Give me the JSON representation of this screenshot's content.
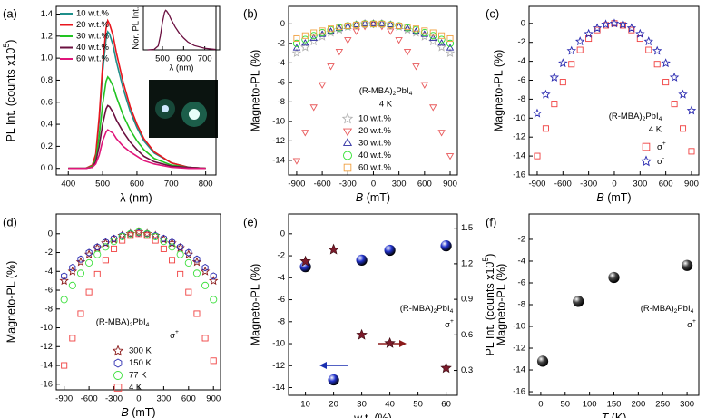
{
  "chart_data": [
    {
      "type": "line",
      "panel_label": "(a)",
      "x": [
        400,
        450,
        470,
        480,
        490,
        500,
        510,
        515,
        520,
        530,
        540,
        560,
        580,
        600,
        620,
        650,
        700,
        750,
        800
      ],
      "xlim": [
        365,
        830
      ],
      "xticks": [
        400,
        500,
        600,
        700,
        800
      ],
      "ylim": [
        -0.06,
        1.47
      ],
      "yticks": [
        {
          "value": 0,
          "label": "0.0"
        },
        0.2,
        0.4,
        0.6,
        0.8,
        {
          "value": 1,
          "label": "1.0"
        },
        1.2,
        1.4
      ],
      "xlabel": "λ (nm)",
      "ylabel": {
        "parts": [
          "PL Int. (counts x10",
          "5",
          ")"
        ],
        "shift": [
          "base",
          "sup",
          "base"
        ]
      },
      "series": [
        {
          "name": "10 w.t.%",
          "color": "#1f8f8a",
          "values": [
            0,
            0,
            0.02,
            0.12,
            0.43,
            0.87,
            1.18,
            1.24,
            1.22,
            1.12,
            0.97,
            0.72,
            0.52,
            0.37,
            0.25,
            0.14,
            0.05,
            0.01,
            0
          ]
        },
        {
          "name": "20 w.t.%",
          "color": "#e8161e",
          "values": [
            0,
            0,
            0.03,
            0.13,
            0.47,
            0.94,
            1.27,
            1.34,
            1.31,
            1.21,
            1.05,
            0.78,
            0.56,
            0.4,
            0.27,
            0.15,
            0.05,
            0.01,
            0
          ]
        },
        {
          "name": "30 w.t.%",
          "color": "#22c422",
          "values": [
            0,
            0,
            0.02,
            0.08,
            0.29,
            0.58,
            0.79,
            0.83,
            0.81,
            0.75,
            0.65,
            0.48,
            0.35,
            0.25,
            0.17,
            0.09,
            0.03,
            0.01,
            0
          ]
        },
        {
          "name": "40 w.t.%",
          "color": "#6b1040",
          "values": [
            0,
            0,
            0.01,
            0.06,
            0.2,
            0.4,
            0.54,
            0.57,
            0.56,
            0.51,
            0.44,
            0.33,
            0.24,
            0.17,
            0.11,
            0.06,
            0.02,
            0.01,
            0
          ]
        },
        {
          "name": "60 w.t.%",
          "color": "#e0157a",
          "values": [
            0,
            0,
            0.01,
            0.04,
            0.12,
            0.25,
            0.33,
            0.35,
            0.34,
            0.32,
            0.27,
            0.2,
            0.15,
            0.11,
            0.07,
            0.04,
            0.01,
            0,
            0
          ]
        }
      ],
      "inset": {
        "type": "line",
        "x": [
          430,
          460,
          480,
          490,
          500,
          510,
          515,
          520,
          530,
          540,
          560,
          580,
          600,
          620,
          650,
          700,
          750
        ],
        "values": [
          0,
          0.01,
          0.1,
          0.35,
          0.7,
          0.95,
          1,
          0.98,
          0.9,
          0.78,
          0.58,
          0.42,
          0.3,
          0.2,
          0.11,
          0.04,
          0.01
        ],
        "color": "#6b1040",
        "xlim": [
          410,
          770
        ],
        "ylim": [
          0,
          1.1
        ],
        "xticks": [
          500,
          600,
          700
        ],
        "xlabel": "λ (nm)",
        "ylabel": "Nor. PL Int."
      }
    },
    {
      "type": "scatter",
      "panel_label": "(b)",
      "x": [
        -900,
        -800,
        -700,
        -600,
        -500,
        -400,
        -300,
        -200,
        -100,
        0,
        100,
        200,
        300,
        400,
        500,
        600,
        700,
        800,
        900
      ],
      "xlim": [
        -995,
        985
      ],
      "xticks": [
        -900,
        -600,
        -300,
        0,
        300,
        600,
        900
      ],
      "ylim": [
        -15.5,
        1.8
      ],
      "yticks": [
        0,
        -2,
        -4,
        -6,
        -8,
        -10,
        -12,
        -14
      ],
      "xlabel": {
        "parts": [
          "B",
          " (mT)"
        ],
        "shift": [
          "italic",
          "base"
        ]
      },
      "ylabel": "Magneto-PL (%)",
      "annotation": {
        "parts": [
          "(R-MBA)",
          "2",
          "PbI",
          "4"
        ],
        "shift": [
          "base",
          "sub",
          "base",
          "sub"
        ]
      },
      "annotation2": "4 K",
      "series": [
        {
          "name": "10 w.t.%",
          "color": "#b0b0b0",
          "marker": "star",
          "values": [
            -3,
            -2.4,
            -1.8,
            -1.3,
            -0.9,
            -0.6,
            -0.3,
            -0.1,
            0,
            0,
            0,
            -0.1,
            -0.3,
            -0.6,
            -0.9,
            -1.3,
            -1.8,
            -2.4,
            -3
          ]
        },
        {
          "name": "20 w.t.%",
          "color": "#e8585a",
          "marker": "down-triangle",
          "values": [
            -14,
            -11.1,
            -8.5,
            -6.2,
            -4.3,
            -2.8,
            -1.6,
            -0.7,
            -0.2,
            0,
            -0.2,
            -0.7,
            -1.6,
            -2.8,
            -4.3,
            -6.2,
            -8.5,
            -11.1,
            -13.5
          ]
        },
        {
          "name": "30 w.t.%",
          "color": "#2a2aa0",
          "marker": "up-triangle",
          "values": [
            -2.5,
            -2,
            -1.5,
            -1.1,
            -0.8,
            -0.5,
            -0.3,
            -0.1,
            0,
            0,
            0,
            -0.1,
            -0.3,
            -0.5,
            -0.8,
            -1.1,
            -1.5,
            -2,
            -2.5
          ]
        },
        {
          "name": "40 w.t.%",
          "color": "#30e030",
          "marker": "circle",
          "values": [
            -2,
            -1.6,
            -1.2,
            -0.9,
            -0.6,
            -0.4,
            -0.2,
            -0.1,
            0,
            0,
            0,
            -0.1,
            -0.2,
            -0.4,
            -0.6,
            -0.9,
            -1.2,
            -1.6,
            -2
          ]
        },
        {
          "name": "60 w.t.%",
          "color": "#f0a040",
          "marker": "square",
          "values": [
            -1.5,
            -1.2,
            -0.9,
            -0.7,
            -0.5,
            -0.3,
            -0.2,
            -0.1,
            0,
            0,
            0,
            -0.1,
            -0.2,
            -0.3,
            -0.5,
            -0.7,
            -0.9,
            -1.2,
            -1.5
          ]
        }
      ]
    },
    {
      "type": "scatter",
      "panel_label": "(c)",
      "x": [
        -900,
        -800,
        -700,
        -600,
        -500,
        -400,
        -300,
        -200,
        -100,
        0,
        100,
        200,
        300,
        400,
        500,
        600,
        700,
        800,
        900
      ],
      "xlim": [
        -995,
        985
      ],
      "xticks": [
        -900,
        -600,
        -300,
        0,
        300,
        600,
        900
      ],
      "ylim": [
        -16,
        1.8
      ],
      "yticks": [
        0,
        -2,
        -4,
        -6,
        -8,
        -10,
        -12,
        -14,
        -16
      ],
      "xlabel": {
        "parts": [
          "B",
          " (mT)"
        ],
        "shift": [
          "italic",
          "base"
        ]
      },
      "ylabel": "Magneto-PL (%)",
      "annotation": {
        "parts": [
          "(R-MBA)",
          "2",
          "PbI",
          "4"
        ],
        "shift": [
          "base",
          "sub",
          "base",
          "sub"
        ]
      },
      "annotation2": "4 K",
      "series": [
        {
          "name": {
            "parts": [
              "σ",
              "+"
            ],
            "shift": [
              "base",
              "sup"
            ]
          },
          "color": "#f04040",
          "marker": "square",
          "values": [
            -14,
            -11.1,
            -8.5,
            -6.2,
            -4.3,
            -2.8,
            -1.6,
            -0.7,
            -0.2,
            0,
            -0.2,
            -0.7,
            -1.6,
            -2.8,
            -4.3,
            -6.2,
            -8.5,
            -11.1,
            -13.5
          ]
        },
        {
          "name": {
            "parts": [
              "σ",
              "-"
            ],
            "shift": [
              "base",
              "sup"
            ]
          },
          "color": "#2a2ab0",
          "marker": "star",
          "values": [
            -9.5,
            -7.5,
            -5.7,
            -4.2,
            -2.9,
            -1.9,
            -1.1,
            -0.5,
            -0.1,
            0,
            -0.1,
            -0.5,
            -1.1,
            -1.9,
            -2.9,
            -4.2,
            -5.7,
            -7.5,
            -9.2
          ]
        }
      ]
    },
    {
      "type": "scatter",
      "panel_label": "(d)",
      "x": [
        -900,
        -800,
        -700,
        -600,
        -500,
        -400,
        -300,
        -200,
        -100,
        0,
        100,
        200,
        300,
        400,
        500,
        600,
        700,
        800,
        900
      ],
      "xlim": [
        -995,
        985
      ],
      "xticks": [
        -900,
        -600,
        -300,
        0,
        300,
        600,
        900
      ],
      "ylim": [
        -16.6,
        2.1
      ],
      "yticks": [
        0,
        -2,
        -4,
        -6,
        -8,
        -10,
        -12,
        -14,
        -16
      ],
      "xlabel": {
        "parts": [
          "B",
          " (mT)"
        ],
        "shift": [
          "italic",
          "base"
        ]
      },
      "ylabel": "Magneto-PL (%)",
      "annotation": {
        "parts": [
          "(R-MBA)",
          "2",
          "PbI",
          "4"
        ],
        "shift": [
          "base",
          "sub",
          "base",
          "sub"
        ]
      },
      "annotation2": {
        "parts": [
          "σ",
          "+"
        ],
        "shift": [
          "base",
          "sup"
        ]
      },
      "series": [
        {
          "name": "300 K",
          "color": "#8b1a1a",
          "marker": "star",
          "values": [
            -5,
            -4,
            -3,
            -2.2,
            -1.5,
            -1,
            -0.6,
            -0.2,
            0,
            0.2,
            0,
            -0.2,
            -0.6,
            -1,
            -1.5,
            -2.2,
            -3,
            -4,
            -5
          ]
        },
        {
          "name": "150 K",
          "color": "#2a2ab0",
          "marker": "hexagon",
          "values": [
            -4.5,
            -3.6,
            -2.7,
            -2,
            -1.4,
            -0.9,
            -0.5,
            -0.2,
            0,
            0.1,
            0,
            -0.2,
            -0.5,
            -0.9,
            -1.4,
            -2,
            -2.7,
            -3.6,
            -4.5
          ]
        },
        {
          "name": "77 K",
          "color": "#3ee03e",
          "marker": "circle",
          "values": [
            -7,
            -5.5,
            -4.2,
            -3.1,
            -2.2,
            -1.4,
            -0.8,
            -0.3,
            0,
            0.2,
            0,
            -0.3,
            -0.8,
            -1.4,
            -2.2,
            -3.1,
            -4.2,
            -5.5,
            -7
          ]
        },
        {
          "name": "4 K",
          "color": "#f04040",
          "marker": "square",
          "values": [
            -14,
            -11.1,
            -8.5,
            -6.2,
            -4.3,
            -2.8,
            -1.6,
            -0.7,
            -0.2,
            0,
            -0.2,
            -0.7,
            -1.6,
            -2.8,
            -4.3,
            -6.2,
            -8.5,
            -11.1,
            -13.5
          ]
        }
      ]
    },
    {
      "type": "scatter",
      "panel_label": "(e)",
      "x": [
        10,
        20,
        30,
        40,
        60
      ],
      "xlim": [
        4,
        64
      ],
      "xticks": [
        10,
        20,
        30,
        40,
        50,
        60
      ],
      "ylim": [
        -14.7,
        1.8
      ],
      "yticks": [
        0,
        -2,
        -4,
        -6,
        -8,
        -10,
        -12,
        -14
      ],
      "y2lim": [
        0.09,
        1.62
      ],
      "y2ticks": [
        0.3,
        0.6,
        0.9,
        1.2,
        1.5
      ],
      "xlabel": "w.t. (%)",
      "ylabel": "Magneto-PL (%)",
      "y2label": {
        "parts": [
          "PL Int. (counts x10",
          "5",
          ")"
        ],
        "shift": [
          "base",
          "sup",
          "base"
        ]
      },
      "annotation": {
        "parts": [
          "(R-MBA)",
          "2",
          "PbI",
          "4"
        ],
        "shift": [
          "base",
          "sub",
          "base",
          "sub"
        ]
      },
      "annotation2": {
        "parts": [
          "σ",
          "+"
        ],
        "shift": [
          "base",
          "sup"
        ]
      },
      "series": [
        {
          "color": "#2233cc",
          "marker": "sphere",
          "values": [
            -3,
            -13.3,
            -2.4,
            -1.5,
            -1.1
          ]
        },
        {
          "color": "#7a1a2a",
          "marker": "filled-star",
          "axis": "y2",
          "values": [
            1.22,
            1.32,
            0.6,
            0.53,
            0.32
          ]
        }
      ]
    },
    {
      "type": "scatter",
      "panel_label": "(f)",
      "x": [
        4,
        77,
        150,
        300
      ],
      "xlim": [
        -24,
        324
      ],
      "xticks": [
        0,
        50,
        100,
        150,
        200,
        250,
        300
      ],
      "ylim": [
        -16.33,
        0.33
      ],
      "yticks": [
        -2,
        -4,
        -6,
        -8,
        -10,
        -12,
        -14,
        -16
      ],
      "xlabel": {
        "parts": [
          "T",
          " (K)"
        ],
        "shift": [
          "italic",
          "base"
        ]
      },
      "ylabel": "Magneto-PL (%)",
      "annotation": {
        "parts": [
          "(R-MBA)",
          "2",
          "PbI",
          "4"
        ],
        "shift": [
          "base",
          "sub",
          "base",
          "sub"
        ]
      },
      "annotation2": {
        "parts": [
          "σ",
          "+"
        ],
        "shift": [
          "base",
          "sup"
        ]
      },
      "series": [
        {
          "color": "#444444",
          "marker": "sphere",
          "values": [
            -13.2,
            -7.7,
            -5.5,
            -4.4
          ]
        }
      ]
    }
  ]
}
